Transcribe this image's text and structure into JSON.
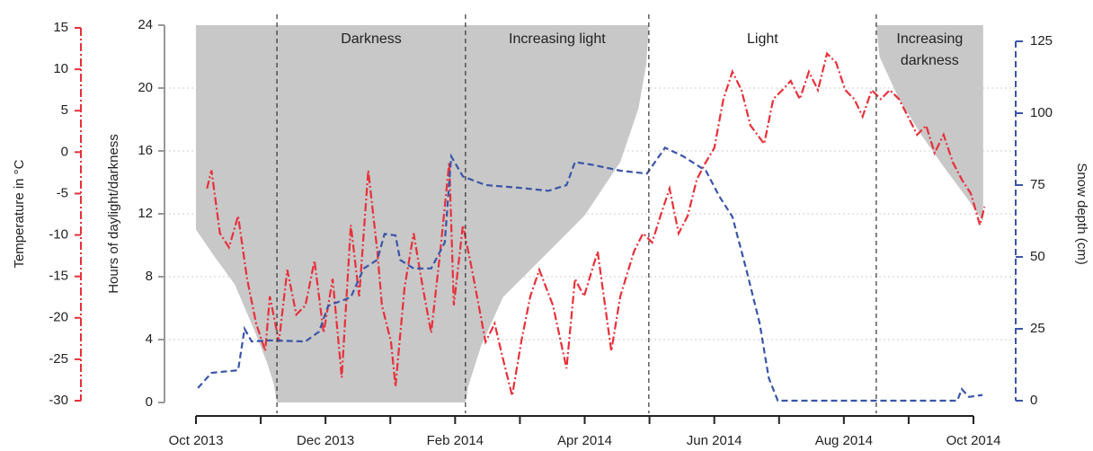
{
  "chart_data": {
    "type": "multi-axis-line",
    "xlim": [
      0,
      12
    ],
    "xticks": [
      {
        "value": 0,
        "label": "Oct 2013"
      },
      {
        "value": 2,
        "label": "Dec 2013"
      },
      {
        "value": 4,
        "label": "Feb 2014"
      },
      {
        "value": 6,
        "label": "Apr 2014"
      },
      {
        "value": 8,
        "label": "Jun 2014"
      },
      {
        "value": 10,
        "label": "Aug 2014"
      },
      {
        "value": 12,
        "label": "Oct 2014"
      }
    ],
    "minor_xticks": [
      1,
      3,
      5,
      7,
      9,
      11
    ],
    "ylabel": "Hours of daylight/darkness",
    "ylim": [
      0,
      24
    ],
    "yticks": [
      0,
      4,
      8,
      12,
      16,
      20,
      24
    ],
    "grid": true,
    "y2label": "Snow depth (cm)",
    "y2lim": [
      0,
      125
    ],
    "y2ticks": [
      0,
      25,
      50,
      75,
      100,
      125
    ],
    "y2color": "#3a55a8",
    "y3label": "Temperature in °C",
    "y3lim": [
      -30,
      15
    ],
    "y3ticks": [
      15,
      10,
      5,
      0,
      -5,
      -10,
      -15,
      -20,
      -25,
      -30
    ],
    "y3color": "#e8303a",
    "regions": [
      {
        "label": [
          "Darkness"
        ],
        "from": 1.25,
        "to": 4.16
      },
      {
        "label": [
          "Increasing light"
        ],
        "from": 4.16,
        "to": 6.99
      },
      {
        "label": [
          "Light"
        ],
        "from": 6.99,
        "to": 10.5
      },
      {
        "label": [
          "Increasing",
          "darkness"
        ],
        "from": 10.5,
        "to": 12.15
      }
    ],
    "series": [
      {
        "style": "darkness-area",
        "axis": "y",
        "color": "#c8c8c8",
        "x": [
          0,
          0.3,
          0.6,
          0.9,
          1.1,
          1.2,
          1.25,
          4.16,
          4.2,
          4.4,
          4.74,
          5.3,
          6.0,
          6.55,
          6.83,
          6.95,
          6.99,
          10.5,
          10.55,
          10.85,
          11.2,
          11.54,
          11.9,
          12.15
        ],
        "values": [
          11,
          9.2,
          7.5,
          4.6,
          2.5,
          1.2,
          0,
          0,
          1,
          3.6,
          6.7,
          9,
          11.9,
          15.3,
          18.7,
          21.5,
          24,
          24,
          22,
          19.3,
          17,
          15,
          13,
          11.5
        ]
      },
      {
        "style": "dash-dot",
        "axis": "y3",
        "color": "#e8303a",
        "x": [
          0.17,
          0.24,
          0.37,
          0.51,
          0.65,
          0.79,
          0.93,
          1.07,
          1.14,
          1.28,
          1.41,
          1.55,
          1.69,
          1.83,
          1.97,
          2.11,
          2.25,
          2.39,
          2.52,
          2.66,
          2.8,
          2.87,
          3.01,
          3.08,
          3.22,
          3.36,
          3.5,
          3.63,
          3.77,
          3.91,
          3.98,
          4.12,
          4.26,
          4.47,
          4.61,
          4.74,
          4.88,
          5.02,
          5.16,
          5.3,
          5.51,
          5.72,
          5.85,
          5.99,
          6.2,
          6.41,
          6.55,
          6.76,
          6.9,
          7.04,
          7.17,
          7.31,
          7.45,
          7.59,
          7.73,
          7.87,
          8.0,
          8.14,
          8.28,
          8.42,
          8.56,
          8.77,
          8.91,
          9.05,
          9.18,
          9.32,
          9.46,
          9.6,
          9.74,
          9.88,
          10.02,
          10.16,
          10.29,
          10.43,
          10.57,
          10.71,
          10.85,
          10.99,
          11.13,
          11.27,
          11.4,
          11.54,
          11.68,
          11.82,
          11.96,
          12.1,
          12.17
        ],
        "values": [
          -4.4,
          -2.2,
          -9.8,
          -11.5,
          -7.7,
          -15.3,
          -20.7,
          -24,
          -17.4,
          -22.9,
          -14.2,
          -19.6,
          -18.5,
          -13.1,
          -21.8,
          -15.3,
          -27.2,
          -8.8,
          -17.4,
          -2.2,
          -12,
          -18.5,
          -22.9,
          -28.3,
          -16.3,
          -9.8,
          -16.3,
          -21.8,
          -12,
          -1.2,
          -18.5,
          -8.8,
          -14.2,
          -22.9,
          -20.7,
          -25,
          -29.4,
          -22.9,
          -17.4,
          -14.2,
          -18.5,
          -26.1,
          -15.3,
          -17.4,
          -12,
          -24,
          -17.4,
          -12,
          -9.8,
          -10.9,
          -7.7,
          -4.4,
          -9.8,
          -7.7,
          -3.3,
          -1.2,
          0.5,
          6.4,
          9.7,
          7.5,
          3.2,
          1,
          6.4,
          7.5,
          8.6,
          6.4,
          9.7,
          7.5,
          11.9,
          10.8,
          7.5,
          6.4,
          4.3,
          7.5,
          6.4,
          7.5,
          6.4,
          4.3,
          2.1,
          3.2,
          -0.1,
          2.1,
          -1.2,
          -3.3,
          -5,
          -8.8,
          -6.6
        ]
      },
      {
        "style": "dashed",
        "axis": "y2",
        "color": "#3a55a8",
        "x": [
          0.03,
          0.24,
          0.65,
          0.75,
          0.86,
          1.14,
          1.69,
          1.9,
          2.04,
          2.39,
          2.59,
          2.8,
          2.91,
          3.08,
          3.15,
          3.36,
          3.63,
          3.84,
          3.94,
          4.12,
          4.47,
          5.02,
          5.44,
          5.72,
          5.85,
          6.13,
          6.55,
          6.96,
          7.24,
          7.52,
          7.87,
          8.08,
          8.28,
          8.49,
          8.7,
          8.84,
          8.98,
          11.75,
          11.82,
          11.93,
          12.14
        ],
        "values": [
          4.4,
          9.7,
          10.6,
          25,
          20.6,
          21,
          20.6,
          24,
          33,
          36,
          46,
          49,
          58,
          57.5,
          49,
          46,
          46,
          55,
          85,
          78,
          75,
          74,
          73,
          75,
          83,
          82,
          80,
          79,
          88,
          85,
          80,
          71,
          64,
          46,
          27,
          8,
          0,
          0,
          4,
          1.3,
          2
        ]
      }
    ]
  }
}
